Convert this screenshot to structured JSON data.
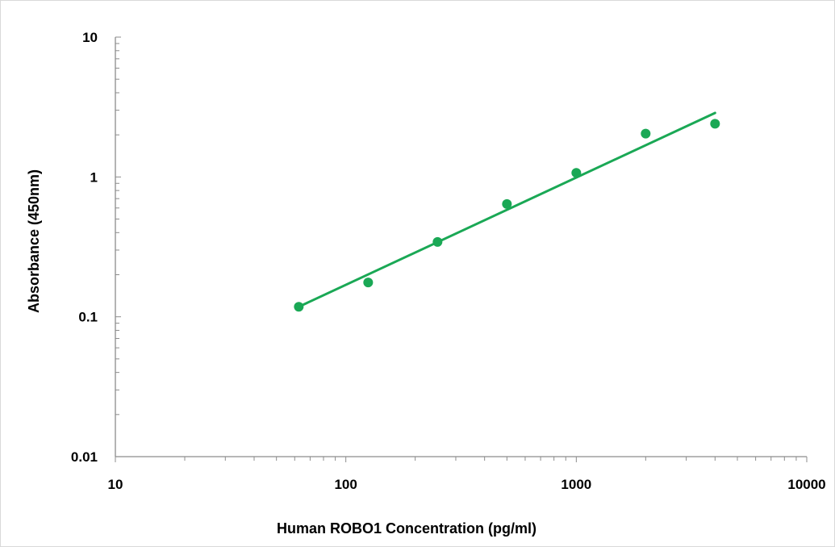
{
  "chart_data": {
    "type": "scatter",
    "title": "",
    "xlabel": "Human ROBO1 Concentration (pg/ml)",
    "ylabel": "Absorbance (450nm)",
    "x_scale": "log",
    "y_scale": "log",
    "xlim": [
      10,
      10000
    ],
    "ylim": [
      0.01,
      10
    ],
    "x_ticks": [
      "10",
      "100",
      "1000",
      "10000"
    ],
    "y_ticks": [
      "0.01",
      "0.1",
      "1",
      "10"
    ],
    "grid": false,
    "legend": "none",
    "series": [
      {
        "color": "#1aa855",
        "x": [
          62.5,
          125,
          250,
          500,
          1000,
          2000,
          4000
        ],
        "y": [
          0.118,
          0.176,
          0.343,
          0.64,
          1.07,
          2.04,
          2.4
        ]
      }
    ],
    "trendline": {
      "color": "#1aa855",
      "x": [
        62.5,
        4000
      ],
      "y": [
        0.118,
        2.87
      ]
    }
  }
}
